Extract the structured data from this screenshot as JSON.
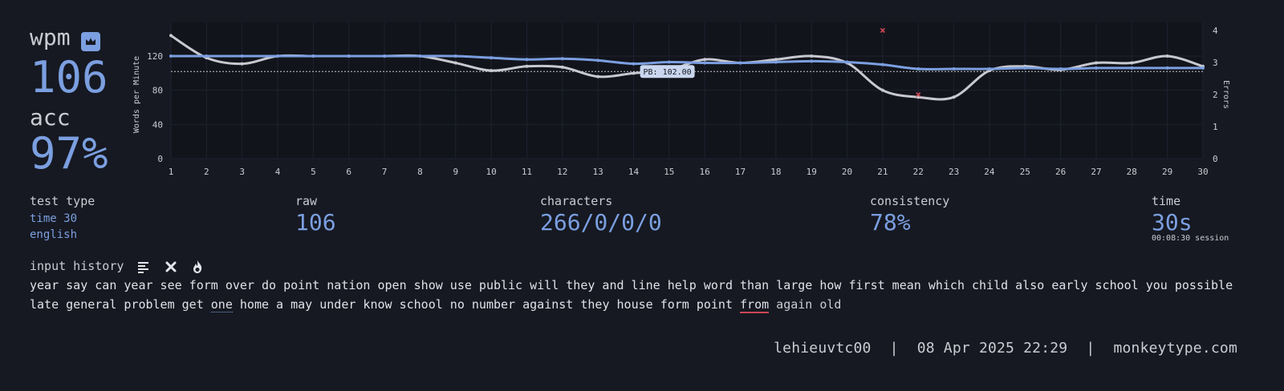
{
  "result": {
    "wpm_label": "wpm",
    "wpm_value": "106",
    "acc_label": "acc",
    "acc_value": "97%"
  },
  "test_type": {
    "label": "test type",
    "mode": "time 30",
    "language": "english"
  },
  "stats": {
    "raw_label": "raw",
    "raw_value": "106",
    "characters_label": "characters",
    "characters_value": "266/0/0/0",
    "consistency_label": "consistency",
    "consistency_value": "78%",
    "time_label": "time",
    "time_value": "30s",
    "session_time": "00:08:30 session"
  },
  "input_history": {
    "label": "input history",
    "line1": "year say can year see form over do point nation open show use public will they and line help word than large how first mean which child also early school you possible",
    "line2_a": "late general problem get ",
    "line2_one": "one",
    "line2_b": " home a may under know school no number against they house form point ",
    "line2_from": "from",
    "line2_c": " again old"
  },
  "footer": {
    "username": "lehieuvtc00",
    "sep1": "|",
    "date": "08 Apr 2025 22:29",
    "sep2": "|",
    "site": "monkeytype.com"
  },
  "colors": {
    "accent": "#7b9fe0",
    "raw_line": "#c8c8d0",
    "error": "#ca4754",
    "background": "#161922"
  },
  "chart_data": {
    "type": "line",
    "x": [
      1,
      2,
      3,
      4,
      5,
      6,
      7,
      8,
      9,
      10,
      11,
      12,
      13,
      14,
      15,
      16,
      17,
      18,
      19,
      20,
      21,
      22,
      23,
      24,
      25,
      26,
      27,
      28,
      29,
      30
    ],
    "series": [
      {
        "name": "wpm",
        "values": [
          120,
          120,
          120,
          120,
          120,
          120,
          120,
          120,
          120,
          118,
          116,
          117,
          115,
          111,
          113,
          112,
          112,
          113,
          114,
          113,
          110,
          105,
          105,
          105,
          106,
          105,
          106,
          106,
          106,
          106
        ]
      },
      {
        "name": "raw",
        "values": [
          144,
          118,
          111,
          120,
          120,
          120,
          120,
          120,
          112,
          103,
          108,
          107,
          96,
          100,
          104,
          116,
          112,
          116,
          120,
          112,
          80,
          72,
          72,
          103,
          108,
          104,
          112,
          112,
          120,
          108
        ]
      }
    ],
    "errors": [
      {
        "x": 21,
        "y": 4
      },
      {
        "x": 22,
        "y": 2
      }
    ],
    "pb": 102,
    "pb_label": "PB: 102.00",
    "ylabel": "Words per Minute",
    "y2label": "Errors",
    "yticks": [
      0,
      40,
      80,
      120
    ],
    "y2ticks": [
      0,
      1,
      2,
      3,
      4
    ],
    "ylim": [
      0,
      150
    ],
    "y2lim": [
      0,
      4
    ]
  }
}
